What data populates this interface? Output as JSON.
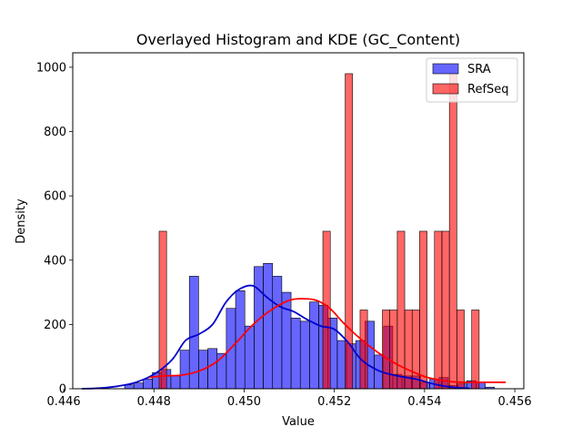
{
  "chart_data": {
    "type": "bar",
    "title": "Overlayed Histogram and KDE (GC_Content)",
    "xlabel": "Value",
    "ylabel": "Density",
    "xlim": [
      0.4462,
      0.4562
    ],
    "ylim": [
      0,
      1045
    ],
    "xticks": [
      0.446,
      0.448,
      0.45,
      0.452,
      0.454,
      0.456
    ],
    "xtick_labels": [
      "0.446",
      "0.448",
      "0.450",
      "0.452",
      "0.454",
      "0.456"
    ],
    "yticks": [
      0,
      200,
      400,
      600,
      800,
      1000
    ],
    "ytick_labels": [
      "0",
      "200",
      "400",
      "600",
      "800",
      "1000"
    ],
    "grid": false,
    "legend_position": "top-right",
    "series": [
      {
        "name": "SRA",
        "kind": "histogram",
        "color": "#0000ff",
        "bin_start": 0.44735,
        "bin_width": 0.000205,
        "values": [
          12,
          18,
          30,
          50,
          60,
          40,
          120,
          350,
          120,
          125,
          110,
          250,
          305,
          195,
          380,
          390,
          350,
          300,
          220,
          210,
          270,
          260,
          220,
          150,
          140,
          150,
          210,
          105,
          195,
          45,
          40,
          40,
          20,
          30,
          35,
          10,
          15,
          25,
          20,
          5
        ]
      },
      {
        "name": "RefSeq",
        "kind": "histogram",
        "color": "#ff0000",
        "bin_start": 0.44795,
        "bin_width": 0.000165,
        "values": [
          0,
          490,
          0,
          0,
          0,
          0,
          0,
          0,
          0,
          0,
          0,
          0,
          0,
          0,
          0,
          0,
          0,
          0,
          0,
          0,
          0,
          0,
          0,
          490,
          0,
          0,
          980,
          0,
          245,
          0,
          0,
          245,
          245,
          490,
          245,
          245,
          490,
          0,
          490,
          490,
          980,
          245,
          0,
          245,
          0,
          0,
          0,
          0,
          0,
          0,
          0,
          0,
          0,
          0,
          0,
          0,
          0,
          0,
          0,
          0,
          0,
          0,
          0,
          0,
          0,
          0,
          0,
          0,
          0,
          0,
          0,
          0,
          0,
          0,
          0,
          0,
          0,
          0,
          0,
          0,
          0,
          0,
          0,
          0,
          0,
          0,
          0,
          0,
          0,
          0,
          0,
          0,
          0,
          0,
          0,
          0,
          0,
          0,
          0,
          0,
          0,
          0,
          0,
          0,
          0,
          0,
          0,
          0,
          0,
          0,
          0,
          0,
          0,
          0,
          0,
          0,
          0,
          0,
          0,
          0
        ]
      }
    ],
    "kde": [
      {
        "name": "SRA",
        "color": "#0000cc",
        "x": [
          0.4464,
          0.4468,
          0.4472,
          0.4476,
          0.448,
          0.4484,
          0.4487,
          0.449,
          0.4493,
          0.4496,
          0.4499,
          0.4502,
          0.4505,
          0.4508,
          0.4511,
          0.4514,
          0.4517,
          0.452,
          0.4523,
          0.4526,
          0.453,
          0.4534,
          0.4538,
          0.4542,
          0.4546,
          0.455
        ],
        "y": [
          0,
          2,
          8,
          20,
          45,
          90,
          150,
          170,
          200,
          270,
          310,
          320,
          285,
          255,
          240,
          215,
          195,
          185,
          145,
          90,
          55,
          40,
          30,
          15,
          5,
          1
        ]
      },
      {
        "name": "RefSeq",
        "color": "#ff0000",
        "x": [
          0.4479,
          0.4482,
          0.4486,
          0.449,
          0.4494,
          0.4498,
          0.4502,
          0.4506,
          0.451,
          0.4513,
          0.4516,
          0.4519,
          0.4522,
          0.4525,
          0.4528,
          0.4531,
          0.4534,
          0.4537,
          0.454,
          0.4543,
          0.4546,
          0.4549,
          0.4552,
          0.4555,
          0.4558
        ],
        "y": [
          35,
          40,
          42,
          55,
          85,
          140,
          200,
          245,
          275,
          280,
          275,
          250,
          205,
          165,
          130,
          100,
          75,
          55,
          38,
          28,
          22,
          20,
          20,
          20,
          20
        ]
      }
    ]
  }
}
